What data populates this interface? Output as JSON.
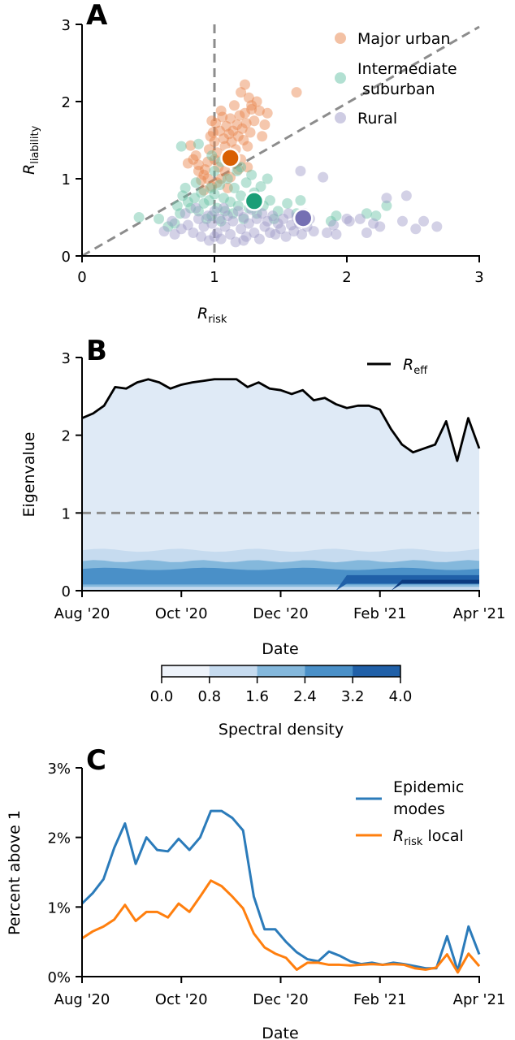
{
  "chart_data": [
    {
      "panel": "A",
      "type": "scatter",
      "xlabel_main": "R",
      "xlabel_sub": "risk",
      "ylabel_main": "R",
      "ylabel_sub": "liability",
      "xlim": [
        0,
        3
      ],
      "ylim": [
        0,
        3
      ],
      "xticks": [
        "0",
        "1",
        "2",
        "3"
      ],
      "yticks": [
        "0",
        "1",
        "2",
        "3"
      ],
      "legend_position": "top-right",
      "series": [
        {
          "name_line1": "Major urban",
          "name_line2": "",
          "color": "#e8834a",
          "mean_color": "#d95f02",
          "mean": [
            1.12,
            1.27
          ],
          "points": [
            [
              0.82,
              1.43
            ],
            [
              0.86,
              1.3
            ],
            [
              0.88,
              1.18
            ],
            [
              0.9,
              0.98
            ],
            [
              0.92,
              1.05
            ],
            [
              0.95,
              1.22
            ],
            [
              0.96,
              1.38
            ],
            [
              0.97,
              1.55
            ],
            [
              0.98,
              1.75
            ],
            [
              0.99,
              1.6
            ],
            [
              1.0,
              1.48
            ],
            [
              1.01,
              1.72
            ],
            [
              1.02,
              1.34
            ],
            [
              1.03,
              1.15
            ],
            [
              1.04,
              1.62
            ],
            [
              1.05,
              1.88
            ],
            [
              1.06,
              1.8
            ],
            [
              1.07,
              1.52
            ],
            [
              1.08,
              1.42
            ],
            [
              1.09,
              1.68
            ],
            [
              1.1,
              1.3
            ],
            [
              1.11,
              1.58
            ],
            [
              1.12,
              1.78
            ],
            [
              1.13,
              1.48
            ],
            [
              1.14,
              1.62
            ],
            [
              1.15,
              1.95
            ],
            [
              1.16,
              1.38
            ],
            [
              1.17,
              1.7
            ],
            [
              1.18,
              1.55
            ],
            [
              1.19,
              1.82
            ],
            [
              1.2,
              1.25
            ],
            [
              1.21,
              1.65
            ],
            [
              1.22,
              1.5
            ],
            [
              1.23,
              1.85
            ],
            [
              1.24,
              1.72
            ],
            [
              1.25,
              1.42
            ],
            [
              1.26,
              2.05
            ],
            [
              1.27,
              1.6
            ],
            [
              1.28,
              1.9
            ],
            [
              1.3,
              1.75
            ],
            [
              1.32,
              2.0
            ],
            [
              1.34,
              1.88
            ],
            [
              1.36,
              1.55
            ],
            [
              1.38,
              1.7
            ],
            [
              1.4,
              1.85
            ],
            [
              1.2,
              2.12
            ],
            [
              1.23,
              2.22
            ],
            [
              1.28,
              1.95
            ],
            [
              1.62,
              2.12
            ],
            [
              0.92,
              0.85
            ],
            [
              0.98,
              0.9
            ],
            [
              1.05,
              1.0
            ],
            [
              0.88,
              1.1
            ],
            [
              1.08,
              1.1
            ],
            [
              1.12,
              1.02
            ],
            [
              1.15,
              1.2
            ],
            [
              0.95,
              1.0
            ],
            [
              1.0,
              1.25
            ],
            [
              1.02,
              0.95
            ],
            [
              1.18,
              1.12
            ],
            [
              0.8,
              1.2
            ],
            [
              0.84,
              1.25
            ],
            [
              1.25,
              1.15
            ],
            [
              1.1,
              0.88
            ],
            [
              0.93,
              1.12
            ]
          ]
        },
        {
          "name_line1": "Intermediate",
          "name_line2": "suburban",
          "color": "#66c2a5",
          "mean_color": "#1b9e77",
          "mean": [
            1.3,
            0.71
          ],
          "points": [
            [
              0.43,
              0.5
            ],
            [
              0.58,
              0.48
            ],
            [
              0.65,
              0.38
            ],
            [
              0.7,
              0.42
            ],
            [
              0.72,
              0.65
            ],
            [
              0.74,
              0.55
            ],
            [
              0.76,
              0.78
            ],
            [
              0.78,
              0.88
            ],
            [
              0.8,
              0.7
            ],
            [
              0.82,
              0.62
            ],
            [
              0.85,
              0.75
            ],
            [
              0.86,
              0.95
            ],
            [
              0.88,
              0.58
            ],
            [
              0.9,
              0.82
            ],
            [
              0.92,
              0.68
            ],
            [
              0.94,
              0.48
            ],
            [
              0.96,
              0.72
            ],
            [
              0.97,
              0.88
            ],
            [
              0.98,
              0.52
            ],
            [
              1.0,
              0.8
            ],
            [
              1.02,
              0.62
            ],
            [
              1.04,
              0.92
            ],
            [
              1.05,
              0.45
            ],
            [
              1.07,
              0.75
            ],
            [
              1.08,
              0.58
            ],
            [
              1.1,
              1.0
            ],
            [
              1.12,
              0.7
            ],
            [
              1.14,
              0.55
            ],
            [
              1.15,
              0.88
            ],
            [
              1.17,
              1.1
            ],
            [
              1.18,
              0.65
            ],
            [
              1.2,
              0.78
            ],
            [
              1.22,
              0.48
            ],
            [
              1.24,
              0.95
            ],
            [
              1.26,
              0.62
            ],
            [
              1.28,
              1.05
            ],
            [
              1.3,
              0.82
            ],
            [
              1.32,
              0.55
            ],
            [
              1.35,
              0.9
            ],
            [
              1.37,
              0.65
            ],
            [
              1.4,
              1.0
            ],
            [
              1.42,
              0.72
            ],
            [
              1.45,
              0.48
            ],
            [
              1.48,
              0.58
            ],
            [
              1.55,
              0.68
            ],
            [
              1.62,
              0.55
            ],
            [
              1.65,
              0.72
            ],
            [
              1.7,
              0.45
            ],
            [
              1.88,
              0.45
            ],
            [
              1.92,
              0.52
            ],
            [
              2.15,
              0.55
            ],
            [
              2.22,
              0.52
            ],
            [
              2.3,
              0.65
            ],
            [
              0.75,
              1.42
            ],
            [
              0.88,
              1.45
            ],
            [
              1.0,
              1.1
            ],
            [
              1.05,
              1.22
            ],
            [
              0.98,
              1.3
            ],
            [
              1.2,
              1.15
            ]
          ]
        },
        {
          "name_line1": "Rural",
          "name_line2": "",
          "color": "#9e9ac8",
          "mean_color": "#7570b3",
          "mean": [
            1.67,
            0.49
          ],
          "points": [
            [
              0.62,
              0.32
            ],
            [
              0.68,
              0.45
            ],
            [
              0.7,
              0.28
            ],
            [
              0.75,
              0.35
            ],
            [
              0.78,
              0.55
            ],
            [
              0.8,
              0.4
            ],
            [
              0.84,
              0.3
            ],
            [
              0.86,
              0.62
            ],
            [
              0.88,
              0.48
            ],
            [
              0.9,
              0.25
            ],
            [
              0.92,
              0.38
            ],
            [
              0.95,
              0.52
            ],
            [
              0.96,
              0.2
            ],
            [
              0.98,
              0.42
            ],
            [
              1.0,
              0.58
            ],
            [
              1.02,
              0.3
            ],
            [
              1.04,
              0.48
            ],
            [
              1.05,
              0.22
            ],
            [
              1.07,
              0.62
            ],
            [
              1.08,
              0.38
            ],
            [
              1.1,
              0.52
            ],
            [
              1.12,
              0.28
            ],
            [
              1.14,
              0.45
            ],
            [
              1.16,
              0.18
            ],
            [
              1.18,
              0.58
            ],
            [
              1.2,
              0.35
            ],
            [
              1.22,
              0.5
            ],
            [
              1.24,
              0.25
            ],
            [
              1.26,
              0.42
            ],
            [
              1.28,
              0.6
            ],
            [
              1.3,
              0.3
            ],
            [
              1.32,
              0.48
            ],
            [
              1.34,
              0.22
            ],
            [
              1.36,
              0.55
            ],
            [
              1.38,
              0.38
            ],
            [
              1.4,
              0.45
            ],
            [
              1.42,
              0.3
            ],
            [
              1.44,
              0.52
            ],
            [
              1.46,
              0.28
            ],
            [
              1.48,
              0.42
            ],
            [
              1.5,
              0.35
            ],
            [
              1.52,
              0.48
            ],
            [
              1.54,
              0.25
            ],
            [
              1.56,
              0.55
            ],
            [
              1.58,
              0.4
            ],
            [
              1.6,
              0.32
            ],
            [
              1.62,
              0.5
            ],
            [
              1.64,
              0.42
            ],
            [
              1.66,
              0.28
            ],
            [
              1.68,
              0.55
            ],
            [
              1.7,
              0.38
            ],
            [
              1.72,
              0.48
            ],
            [
              1.75,
              0.32
            ],
            [
              1.82,
              1.02
            ],
            [
              1.85,
              0.3
            ],
            [
              1.9,
              0.4
            ],
            [
              1.92,
              0.28
            ],
            [
              2.0,
              0.48
            ],
            [
              2.02,
              0.45
            ],
            [
              2.1,
              0.48
            ],
            [
              2.15,
              0.3
            ],
            [
              2.2,
              0.42
            ],
            [
              2.25,
              0.38
            ],
            [
              2.3,
              0.75
            ],
            [
              2.42,
              0.45
            ],
            [
              2.45,
              0.78
            ],
            [
              2.52,
              0.35
            ],
            [
              2.58,
              0.45
            ],
            [
              2.68,
              0.38
            ],
            [
              1.65,
              1.1
            ],
            [
              1.0,
              0.25
            ],
            [
              1.22,
              0.2
            ]
          ]
        }
      ]
    },
    {
      "panel": "B",
      "type": "area",
      "xlabel": "Date",
      "ylabel": "Eigenvalue",
      "ylim": [
        0,
        3
      ],
      "yticks": [
        "0",
        "1",
        "2",
        "3"
      ],
      "xticks": [
        "Aug '20",
        "Oct '20",
        "Dec '20",
        "Feb '21",
        "Apr '21"
      ],
      "legend_main": "R",
      "legend_sub": "eff",
      "legend_position": "top-right",
      "reference_line": 1,
      "weeks": 40,
      "reff": [
        2.22,
        2.28,
        2.38,
        2.62,
        2.6,
        2.68,
        2.72,
        2.68,
        2.6,
        2.65,
        2.68,
        2.7,
        2.72,
        2.72,
        2.72,
        2.62,
        2.68,
        2.6,
        2.58,
        2.53,
        2.58,
        2.45,
        2.48,
        2.4,
        2.35,
        2.38,
        2.38,
        2.33,
        2.08,
        1.88,
        1.78,
        1.83,
        1.88,
        2.18,
        1.67,
        2.22,
        1.83
      ],
      "colorbar": {
        "label": "Spectral density",
        "ticks": [
          "0.0",
          "0.8",
          "1.6",
          "2.4",
          "3.2",
          "4.0"
        ],
        "colors": [
          "#eef3fa",
          "#c6dbef",
          "#84b8dc",
          "#4a90c8",
          "#2060a8",
          "#0b3b80"
        ]
      }
    },
    {
      "panel": "C",
      "type": "line",
      "xlabel": "Date",
      "ylabel": "Percent above 1",
      "ylim": [
        0,
        3
      ],
      "yticks": [
        "0%",
        "1%",
        "2%",
        "3%"
      ],
      "xticks": [
        "Aug '20",
        "Oct '20",
        "Dec '20",
        "Feb '21",
        "Apr '21"
      ],
      "legend_position": "top-right",
      "series": [
        {
          "name_line1": "Epidemic",
          "name_line2": "modes",
          "color": "#2b7bba",
          "values": [
            1.05,
            1.2,
            1.4,
            1.85,
            2.2,
            1.62,
            2.0,
            1.82,
            1.8,
            1.98,
            1.82,
            2.0,
            2.38,
            2.38,
            2.28,
            2.1,
            1.15,
            0.68,
            0.68,
            0.5,
            0.35,
            0.25,
            0.22,
            0.36,
            0.3,
            0.22,
            0.18,
            0.2,
            0.17,
            0.2,
            0.18,
            0.15,
            0.12,
            0.12,
            0.58,
            0.08,
            0.72,
            0.32
          ]
        },
        {
          "name_main": "R",
          "name_sub": "risk",
          "name_rest": " local",
          "color": "#ff7f0e",
          "values": [
            0.55,
            0.65,
            0.72,
            0.82,
            1.03,
            0.8,
            0.93,
            0.93,
            0.85,
            1.05,
            0.93,
            1.15,
            1.38,
            1.3,
            1.15,
            0.98,
            0.62,
            0.42,
            0.33,
            0.27,
            0.1,
            0.2,
            0.2,
            0.17,
            0.17,
            0.16,
            0.17,
            0.18,
            0.17,
            0.18,
            0.17,
            0.12,
            0.1,
            0.13,
            0.32,
            0.06,
            0.33,
            0.15
          ]
        }
      ]
    }
  ]
}
